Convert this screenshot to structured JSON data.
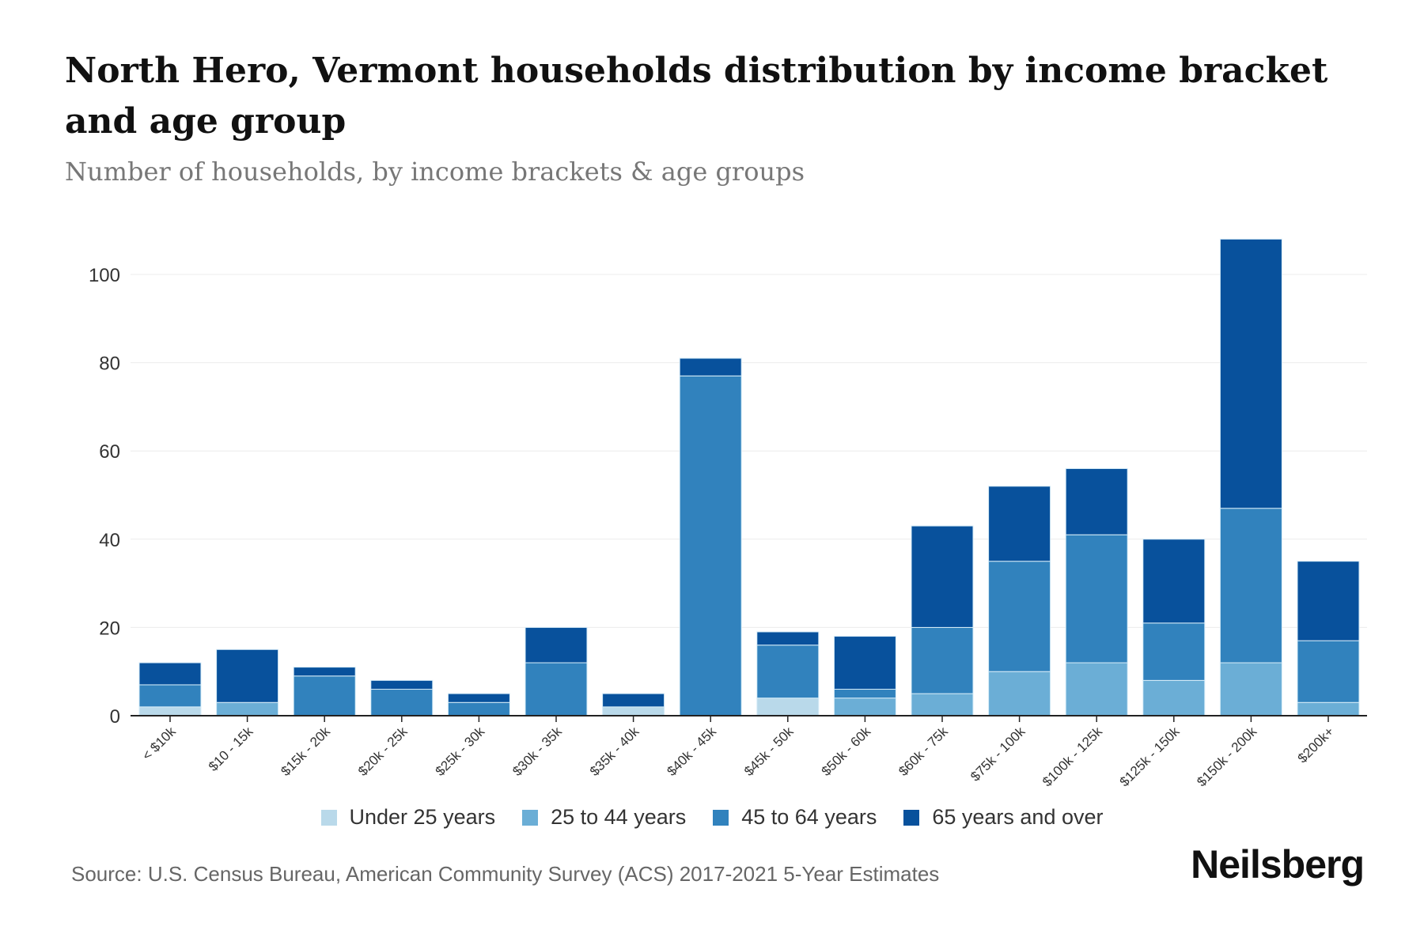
{
  "title": "North Hero, Vermont households distribution by income bracket and age group",
  "subtitle": "Number of households, by income brackets & age groups",
  "source": "Source: U.S. Census Bureau, American Community Survey (ACS) 2017-2021 5-Year Estimates",
  "logo": "Neilsberg",
  "chart_data": {
    "type": "bar",
    "stacked": true,
    "title": "North Hero, Vermont households distribution by income bracket and age group",
    "xlabel": "",
    "ylabel": "Number of households",
    "ylim": [
      0,
      110
    ],
    "yticks": [
      0,
      20,
      40,
      60,
      80,
      100
    ],
    "grid": true,
    "legend_position": "bottom",
    "categories": [
      "< $10k",
      "$10 - 15k",
      "$15k - 20k",
      "$20k - 25k",
      "$25k - 30k",
      "$30k - 35k",
      "$35k - 40k",
      "$40k - 45k",
      "$45k - 50k",
      "$50k - 60k",
      "$60k - 75k",
      "$75k - 100k",
      "$100k - 125k",
      "$125k - 150k",
      "$150k - 200k",
      "$200k+"
    ],
    "series": [
      {
        "name": "Under 25 years",
        "color": "#b9d9ea",
        "values": [
          2,
          0,
          0,
          0,
          0,
          0,
          2,
          0,
          4,
          0,
          0,
          0,
          0,
          0,
          0,
          0
        ]
      },
      {
        "name": "25 to 44 years",
        "color": "#6baed6",
        "values": [
          0,
          3,
          0,
          0,
          0,
          0,
          0,
          0,
          0,
          4,
          5,
          10,
          12,
          8,
          12,
          3
        ]
      },
      {
        "name": "45 to 64 years",
        "color": "#3182bd",
        "values": [
          5,
          0,
          9,
          6,
          3,
          12,
          0,
          77,
          12,
          2,
          15,
          25,
          29,
          13,
          35,
          14
        ]
      },
      {
        "name": "65 years and over",
        "color": "#08519c",
        "values": [
          5,
          12,
          2,
          2,
          2,
          8,
          3,
          4,
          3,
          12,
          23,
          17,
          15,
          19,
          61,
          18
        ]
      }
    ]
  }
}
